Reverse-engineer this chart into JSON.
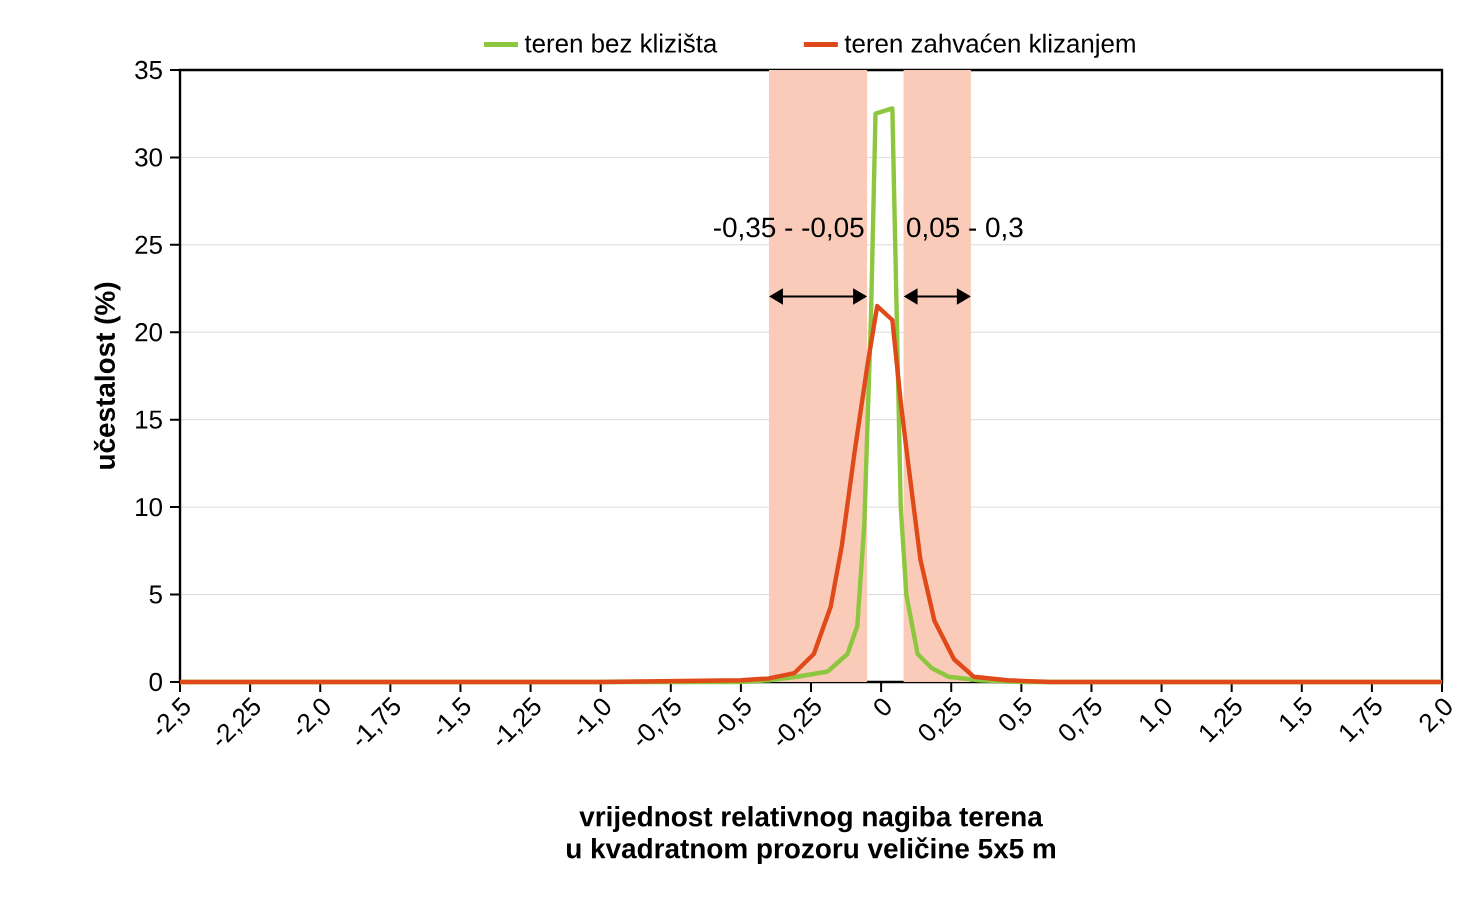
{
  "chart_data": {
    "type": "line",
    "xlabel": "vrijednost relativnog nagiba terena\nu kvadratnom prozoru veličine 5x5 m",
    "ylabel": "učestalost (%)",
    "series": [
      {
        "name": "teren bez klizišta",
        "color": "#8dc63f",
        "x": [
          -2.5,
          -1.0,
          -0.5,
          -0.4,
          -0.3,
          -0.19,
          -0.12,
          -0.085,
          -0.06,
          -0.036,
          -0.02,
          0.04,
          0.07,
          0.09,
          0.13,
          0.18,
          0.24,
          0.35,
          0.5,
          1.0,
          2.0
        ],
        "values": [
          0,
          0,
          0,
          0.1,
          0.3,
          0.6,
          1.6,
          3.2,
          9,
          21,
          32.5,
          32.8,
          10,
          5,
          1.6,
          0.8,
          0.3,
          0.1,
          0,
          0,
          0
        ]
      },
      {
        "name": "teren zahvaćen klizanjem",
        "color": "#e04a1a",
        "x": [
          -2.5,
          -1.0,
          -0.5,
          -0.4,
          -0.31,
          -0.24,
          -0.18,
          -0.14,
          -0.095,
          -0.05,
          -0.014,
          0.04,
          0.07,
          0.095,
          0.14,
          0.19,
          0.26,
          0.33,
          0.45,
          0.6,
          1.0,
          2.0
        ],
        "values": [
          0,
          0,
          0.1,
          0.2,
          0.5,
          1.6,
          4.3,
          7.8,
          13.1,
          18,
          21.5,
          20.7,
          16,
          12.7,
          7,
          3.5,
          1.3,
          0.3,
          0.1,
          0,
          0,
          0
        ]
      }
    ],
    "xlim": [
      -2.5,
      2.0
    ],
    "ylim": [
      0,
      35
    ],
    "xticks": [
      {
        "value": -2.5,
        "label": "-2,5"
      },
      {
        "value": -2.25,
        "label": "-2,25"
      },
      {
        "value": -2.0,
        "label": "-2,0"
      },
      {
        "value": -1.75,
        "label": "-1,75"
      },
      {
        "value": -1.5,
        "label": "-1,5"
      },
      {
        "value": -1.25,
        "label": "-1,25"
      },
      {
        "value": -1.0,
        "label": "-1,0"
      },
      {
        "value": -0.75,
        "label": "-0,75"
      },
      {
        "value": -0.5,
        "label": "-0,5"
      },
      {
        "value": -0.25,
        "label": "-0,25"
      },
      0,
      {
        "value": 0.25,
        "label": "0,25"
      },
      {
        "value": 0.5,
        "label": "0,5"
      },
      {
        "value": 0.75,
        "label": "0,75"
      },
      {
        "value": 1.0,
        "label": "1,0"
      },
      {
        "value": 1.25,
        "label": "1,25"
      },
      {
        "value": 1.5,
        "label": "1,5"
      },
      {
        "value": 1.75,
        "label": "1,75"
      },
      {
        "value": 2.0,
        "label": "2,0"
      }
    ],
    "yticks": [
      0,
      5,
      10,
      15,
      20,
      25,
      30,
      35
    ],
    "bands": [
      {
        "axis": "x",
        "from": -0.4,
        "to": -0.05,
        "color": "#f9cbb8"
      },
      {
        "axis": "x",
        "from": 0.08,
        "to": 0.32,
        "color": "#f9cbb8"
      }
    ],
    "annotations": [
      "-0,35 - -0,05",
      "0,05 - 0,3"
    ],
    "grid": "y",
    "legend": "top",
    "marker": "none",
    "line_style": "solid"
  }
}
